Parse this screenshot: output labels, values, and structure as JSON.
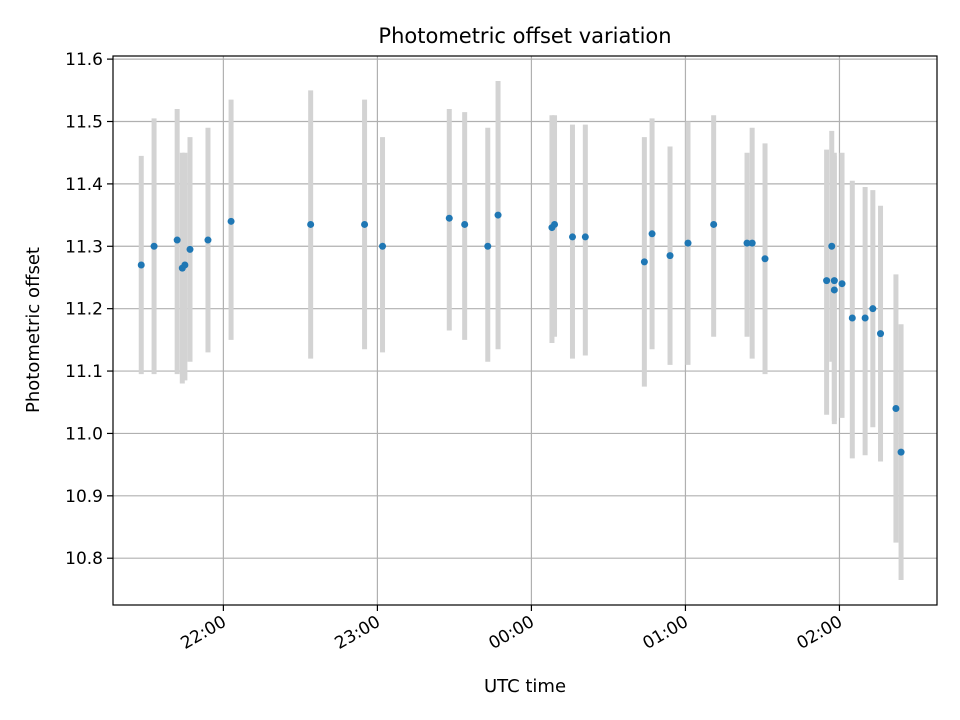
{
  "chart_data": {
    "type": "scatter",
    "title": "Photometric offset variation",
    "xlabel": "UTC time",
    "ylabel": "Photometric offset",
    "xlim": [
      "21:17",
      "02:38"
    ],
    "ylim": [
      10.725,
      11.605
    ],
    "x_ticks": [
      "22:00",
      "23:00",
      "00:00",
      "01:00",
      "02:00"
    ],
    "y_ticks": [
      10.8,
      10.9,
      11.0,
      11.1,
      11.2,
      11.3,
      11.4,
      11.5,
      11.6
    ],
    "grid": true,
    "colors": {
      "point": "#1f77b4",
      "errorbar": "#d3d3d3",
      "grid": "#b0b0b0"
    },
    "points": [
      {
        "t": "21:28",
        "y": 11.27,
        "lo": 11.095,
        "hi": 11.445
      },
      {
        "t": "21:33",
        "y": 11.3,
        "lo": 11.095,
        "hi": 11.505
      },
      {
        "t": "21:42",
        "y": 11.31,
        "lo": 11.095,
        "hi": 11.52
      },
      {
        "t": "21:44",
        "y": 11.265,
        "lo": 11.08,
        "hi": 11.45
      },
      {
        "t": "21:45",
        "y": 11.27,
        "lo": 11.085,
        "hi": 11.45
      },
      {
        "t": "21:47",
        "y": 11.295,
        "lo": 11.115,
        "hi": 11.475
      },
      {
        "t": "21:54",
        "y": 11.31,
        "lo": 11.13,
        "hi": 11.49
      },
      {
        "t": "22:03",
        "y": 11.34,
        "lo": 11.15,
        "hi": 11.535
      },
      {
        "t": "22:34",
        "y": 11.335,
        "lo": 11.12,
        "hi": 11.55
      },
      {
        "t": "22:55",
        "y": 11.335,
        "lo": 11.135,
        "hi": 11.535
      },
      {
        "t": "23:02",
        "y": 11.3,
        "lo": 11.13,
        "hi": 11.475
      },
      {
        "t": "23:28",
        "y": 11.345,
        "lo": 11.165,
        "hi": 11.52
      },
      {
        "t": "23:34",
        "y": 11.335,
        "lo": 11.15,
        "hi": 11.515
      },
      {
        "t": "23:43",
        "y": 11.3,
        "lo": 11.115,
        "hi": 11.49
      },
      {
        "t": "23:47",
        "y": 11.35,
        "lo": 11.135,
        "hi": 11.565
      },
      {
        "t": "00:08",
        "y": 11.33,
        "lo": 11.145,
        "hi": 11.51
      },
      {
        "t": "00:09",
        "y": 11.335,
        "lo": 11.155,
        "hi": 11.51
      },
      {
        "t": "00:16",
        "y": 11.315,
        "lo": 11.12,
        "hi": 11.495
      },
      {
        "t": "00:21",
        "y": 11.315,
        "lo": 11.125,
        "hi": 11.495
      },
      {
        "t": "00:44",
        "y": 11.275,
        "lo": 11.075,
        "hi": 11.475
      },
      {
        "t": "00:47",
        "y": 11.32,
        "lo": 11.135,
        "hi": 11.505
      },
      {
        "t": "00:54",
        "y": 11.285,
        "lo": 11.11,
        "hi": 11.46
      },
      {
        "t": "01:01",
        "y": 11.305,
        "lo": 11.11,
        "hi": 11.5
      },
      {
        "t": "01:11",
        "y": 11.335,
        "lo": 11.155,
        "hi": 11.51
      },
      {
        "t": "01:24",
        "y": 11.305,
        "lo": 11.155,
        "hi": 11.45
      },
      {
        "t": "01:26",
        "y": 11.305,
        "lo": 11.12,
        "hi": 11.49
      },
      {
        "t": "01:31",
        "y": 11.28,
        "lo": 11.095,
        "hi": 11.465
      },
      {
        "t": "01:55",
        "y": 11.245,
        "lo": 11.03,
        "hi": 11.455
      },
      {
        "t": "01:57",
        "y": 11.3,
        "lo": 11.115,
        "hi": 11.485
      },
      {
        "t": "01:58",
        "y": 11.245,
        "lo": 11.02,
        "hi": 11.45
      },
      {
        "t": "01:58",
        "y": 11.23,
        "lo": 11.015,
        "hi": 11.445
      },
      {
        "t": "02:01",
        "y": 11.24,
        "lo": 11.025,
        "hi": 11.45
      },
      {
        "t": "02:05",
        "y": 11.185,
        "lo": 10.96,
        "hi": 11.405
      },
      {
        "t": "02:10",
        "y": 11.185,
        "lo": 10.965,
        "hi": 11.395
      },
      {
        "t": "02:13",
        "y": 11.2,
        "lo": 11.01,
        "hi": 11.39
      },
      {
        "t": "02:16",
        "y": 11.16,
        "lo": 10.955,
        "hi": 11.365
      },
      {
        "t": "02:22",
        "y": 11.04,
        "lo": 10.825,
        "hi": 11.255
      },
      {
        "t": "02:24",
        "y": 10.97,
        "lo": 10.765,
        "hi": 11.175
      }
    ]
  }
}
